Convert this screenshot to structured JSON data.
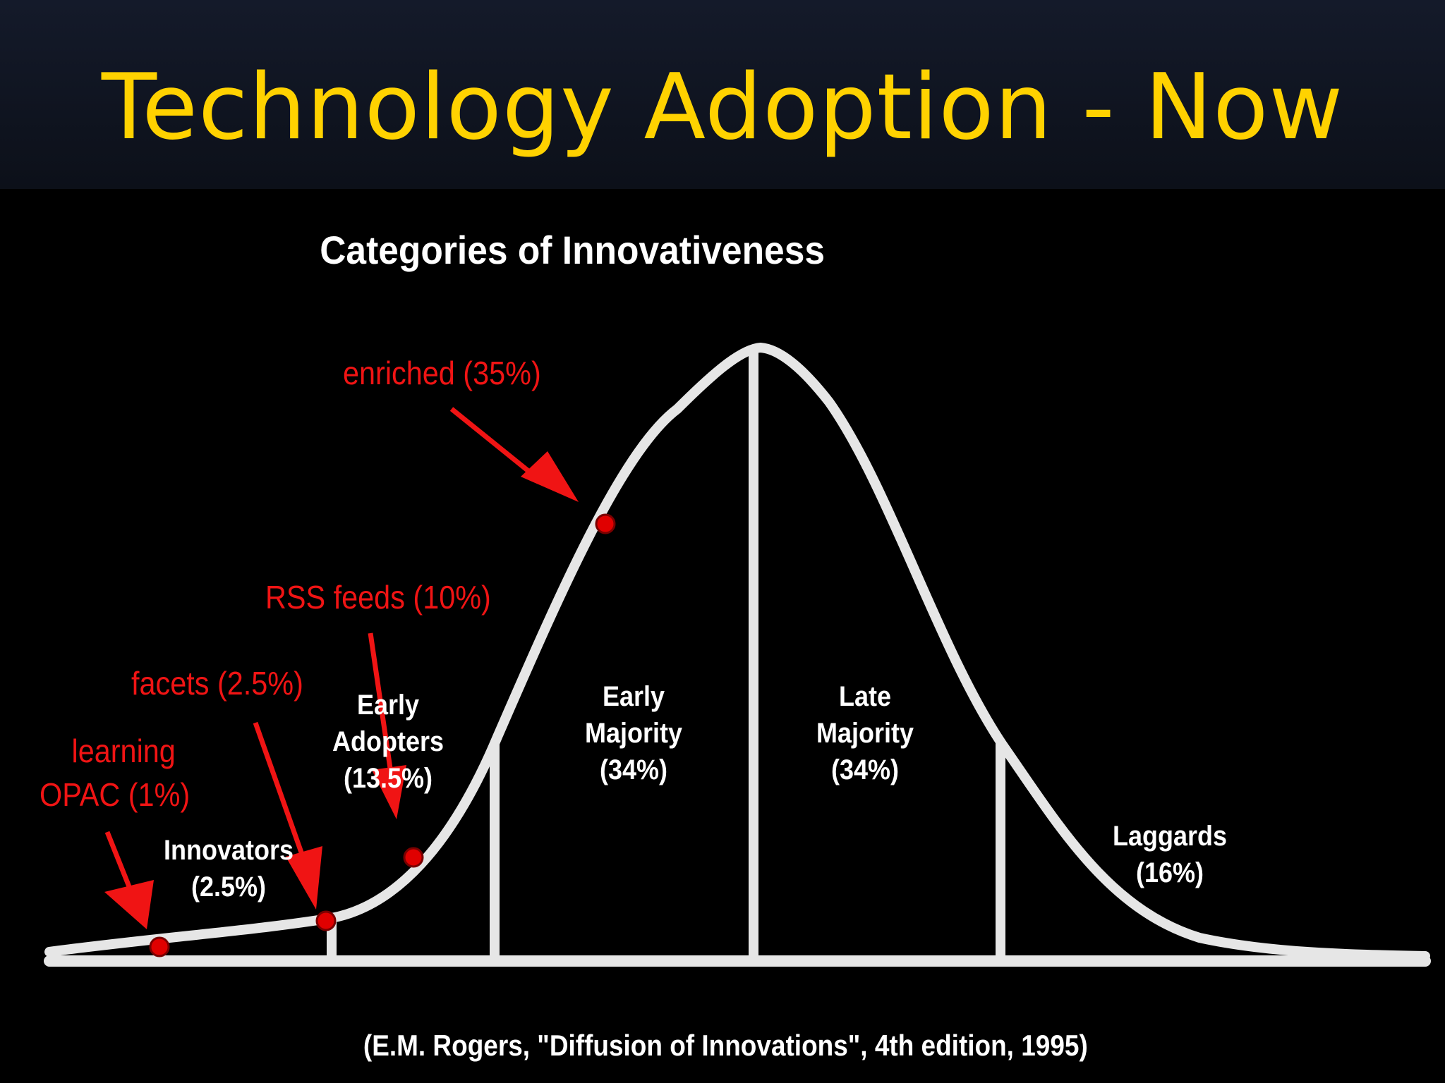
{
  "slide": {
    "title": "Technology Adoption - Now",
    "title_color": "#ffd200"
  },
  "diagram": {
    "title": "Categories of Innovativeness",
    "citation": "(E.M. Rogers, \"Diffusion of Innovations\", 4th edition, 1995)",
    "curve_color": "#e6e6e6",
    "segments": [
      {
        "id": "innovators",
        "line1": "Innovators",
        "line2": "(2.5%)",
        "share_percent": 2.5
      },
      {
        "id": "early-adopters",
        "line1": "Early",
        "line2": "Adopters",
        "line3": "(13.5%)",
        "share_percent": 13.5
      },
      {
        "id": "early-majority",
        "line1": "Early",
        "line2": "Majority",
        "line3": "(34%)",
        "share_percent": 34
      },
      {
        "id": "late-majority",
        "line1": "Late",
        "line2": "Majority",
        "line3": "(34%)",
        "share_percent": 34
      },
      {
        "id": "laggards",
        "line1": "Laggards",
        "line2": "(16%)",
        "share_percent": 16
      }
    ],
    "annotations": {
      "color": "#f01414",
      "items": [
        {
          "id": "learning-opac",
          "line1": "learning",
          "line2": "OPAC (1%)",
          "adoption_percent": 1
        },
        {
          "id": "facets",
          "line1": "facets (2.5%)",
          "adoption_percent": 2.5
        },
        {
          "id": "rss-feeds",
          "line1": "RSS feeds (10%)",
          "adoption_percent": 10
        },
        {
          "id": "enriched",
          "line1": "enriched (35%)",
          "adoption_percent": 35
        }
      ]
    }
  }
}
